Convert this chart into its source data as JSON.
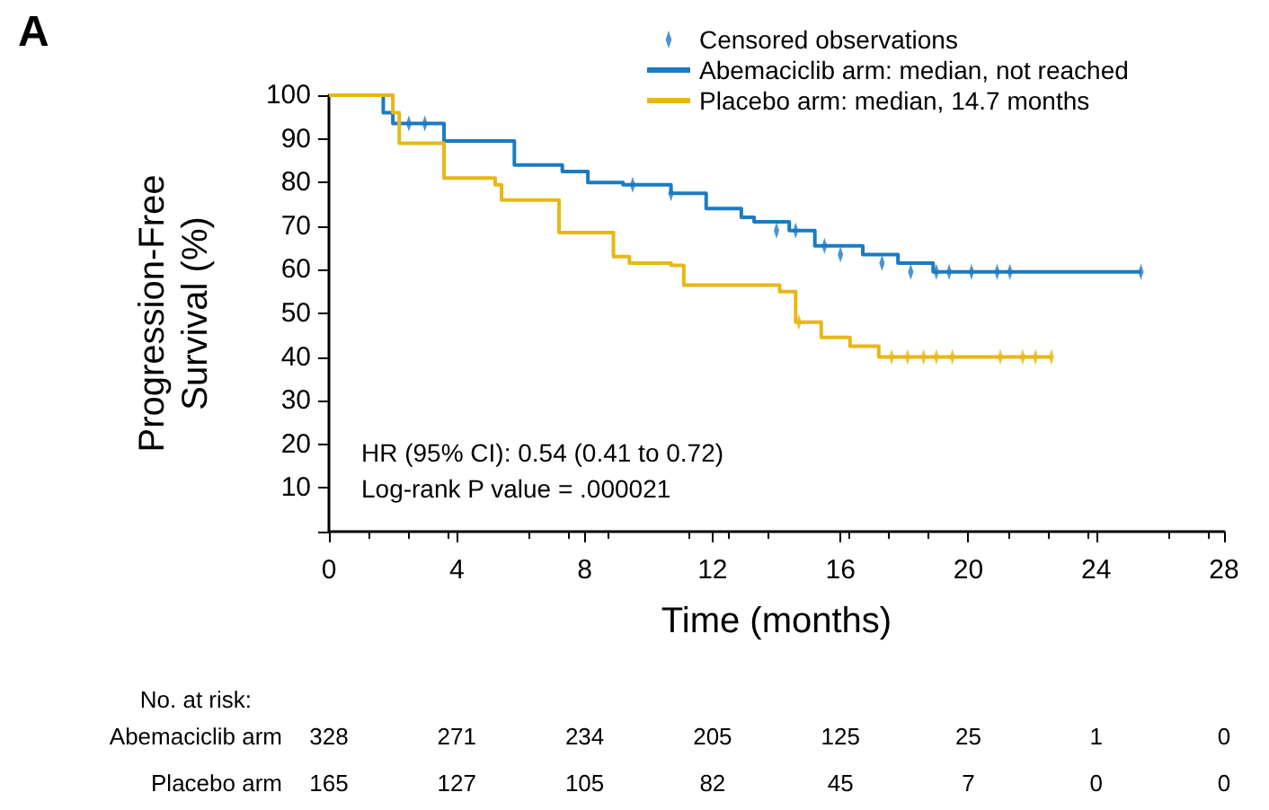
{
  "chart_data": {
    "type": "step",
    "title": "A",
    "xlabel": "Time (months)",
    "ylabel": "Progression-Free\nSurvival (%)",
    "xlim": [
      0,
      28
    ],
    "xticks": [
      0,
      4,
      8,
      12,
      16,
      20,
      24,
      28
    ],
    "ylim": [
      0,
      100
    ],
    "yticks": [
      {
        "value": 0,
        "label": null
      },
      10,
      20,
      30,
      40,
      50,
      60,
      70,
      80,
      90,
      100
    ],
    "grid": false,
    "legend": "top right",
    "series": [
      {
        "name": "Abemaciclib arm: median, not reached",
        "color": "#1a7bc4",
        "x": [
          0,
          1.2,
          1.7,
          2.0,
          3.6,
          5.8,
          7.3,
          8.1,
          9.2,
          10.7,
          11.8,
          12.9,
          13.3,
          14.4,
          15.2,
          16.7,
          17.8,
          18.9,
          25.4
        ],
        "values": [
          100,
          100,
          96,
          93.5,
          89.5,
          84,
          82.5,
          80,
          79.5,
          77.5,
          74,
          72,
          71,
          69,
          65.5,
          63.5,
          61.5,
          59.5,
          59.5
        ]
      },
      {
        "name": "Placebo arm: median, 14.7 months",
        "color": "#e8b714",
        "x": [
          0,
          1.2,
          2.0,
          2.2,
          3.6,
          5.2,
          5.4,
          7.2,
          8.9,
          9.4,
          10.7,
          11.1,
          14.1,
          14.6,
          15.4,
          16.3,
          17.2,
          22.6
        ],
        "values": [
          100,
          100,
          96,
          89,
          81,
          79.5,
          76,
          68.5,
          63,
          61.5,
          61,
          56.5,
          55,
          48,
          44.5,
          42.5,
          40,
          40
        ]
      },
      {
        "name": "Censored observations",
        "type": "scatter",
        "marker": "diamond",
        "color": "#1a7bc4",
        "x": [
          2.5,
          3.0,
          9.5,
          10.7,
          14.0,
          14.6,
          15.5,
          16.0,
          17.3,
          18.2,
          19.0,
          19.4,
          20.1,
          20.9,
          21.3,
          25.4
        ],
        "values": [
          93.5,
          93.5,
          79.5,
          77.5,
          69,
          69,
          65.5,
          63.5,
          61.5,
          59.5,
          59.5,
          59.5,
          59.5,
          59.5,
          59.5,
          59.5
        ]
      },
      {
        "type": "scatter",
        "marker": "diamond",
        "color": "#e8b714",
        "x": [
          14.7,
          17.6,
          18.1,
          18.6,
          19.0,
          19.5,
          21.0,
          21.7,
          22.1,
          22.6
        ],
        "values": [
          48,
          40,
          40,
          40,
          40,
          40,
          40,
          40,
          40,
          40
        ]
      }
    ],
    "annotations": [
      "HR (95% CI): 0.54 (0.41 to 0.72)",
      "Log-rank P value = .000021",
      "No. at risk:",
      "Abemaciclib arm",
      "328",
      "271",
      "234",
      "205",
      "125",
      "25",
      "1",
      "0",
      "Placebo arm",
      "165",
      "127",
      "105",
      "82",
      "45",
      "7",
      "0",
      "0"
    ]
  }
}
